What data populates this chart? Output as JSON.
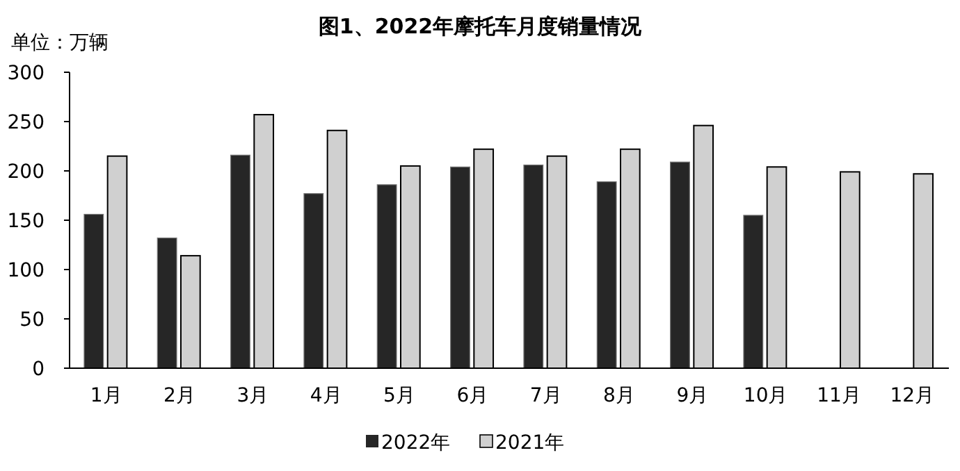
{
  "chart_data": {
    "type": "bar",
    "title": "图1、2022年摩托车月度销量情况",
    "ylabel": "单位：万辆",
    "categories": [
      "1月",
      "2月",
      "3月",
      "4月",
      "5月",
      "6月",
      "7月",
      "8月",
      "9月",
      "10月",
      "11月",
      "12月"
    ],
    "series": [
      {
        "name": "2022年",
        "color": "#262626",
        "values": [
          156,
          132,
          216,
          177,
          186,
          204,
          206,
          189,
          209,
          155,
          null,
          null
        ]
      },
      {
        "name": "2021年",
        "color": "#d0d0d0",
        "values": [
          215,
          114,
          257,
          241,
          205,
          222,
          215,
          222,
          246,
          204,
          199,
          197
        ]
      }
    ],
    "ylim": [
      0,
      300
    ],
    "yticks": [
      0,
      50,
      100,
      150,
      200,
      250,
      300
    ],
    "grid": false,
    "legend": "bottom"
  }
}
